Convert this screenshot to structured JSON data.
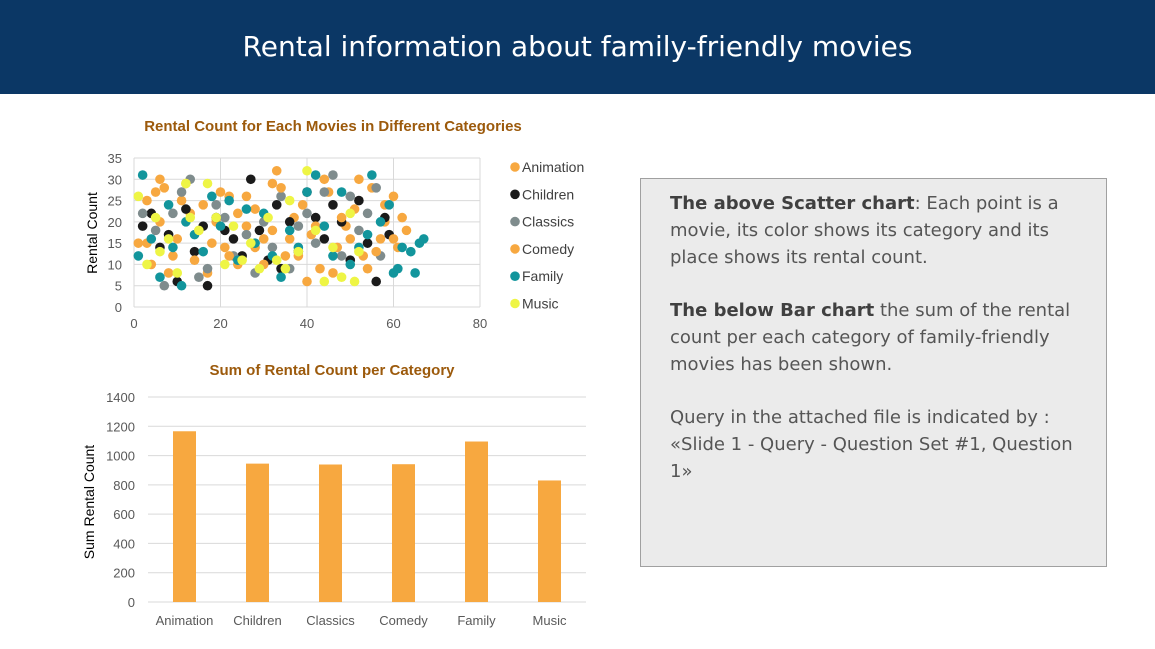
{
  "header": {
    "title": "Rental information about family-friendly movies"
  },
  "colors": {
    "header_bg": "#0b3765",
    "chart_title": "#9c5a0c",
    "bar": "#f7a840",
    "animation": "#f7a840",
    "children": "#1a1a1a",
    "classics": "#7f8c8d",
    "comedy": "#f7a840",
    "family": "#12959c",
    "music": "#eef545"
  },
  "info": {
    "p1_bold": "The above Scatter chart",
    "p1_text": ": Each point is a movie, its color shows its category and its place shows its rental count.",
    "p2_bold": "The below Bar chart",
    "p2_text": " the sum of the rental count per each category of family-friendly movies has been shown.",
    "p3_text": "Query in the attached file is indicated by : «Slide 1 - Query - Question Set #1, Question 1»"
  },
  "chart_data": [
    {
      "type": "scatter",
      "title": "Rental Count for Each Movies in Different Categories",
      "xlabel": "",
      "ylabel": "Rental Count",
      "xlim": [
        0,
        80
      ],
      "ylim": [
        0,
        35
      ],
      "x_ticks": [
        "0",
        "20",
        "40",
        "60",
        "80"
      ],
      "y_ticks": [
        "0",
        "5",
        "10",
        "15",
        "20",
        "25",
        "30",
        "35"
      ],
      "grid": true,
      "legend_position": "right",
      "series": [
        {
          "name": "Animation",
          "color": "#f7a840",
          "points": [
            [
              3,
              15
            ],
            [
              5,
              27
            ],
            [
              6,
              30
            ],
            [
              7,
              28
            ],
            [
              9,
              12
            ],
            [
              11,
              25
            ],
            [
              13,
              22
            ],
            [
              15,
              18
            ],
            [
              17,
              8
            ],
            [
              19,
              20
            ],
            [
              21,
              14
            ],
            [
              22,
              26
            ],
            [
              24,
              10
            ],
            [
              26,
              19
            ],
            [
              28,
              23
            ],
            [
              30,
              16
            ],
            [
              32,
              29
            ],
            [
              33,
              32
            ],
            [
              35,
              12
            ],
            [
              37,
              21
            ],
            [
              39,
              24
            ],
            [
              41,
              17
            ],
            [
              43,
              9
            ],
            [
              45,
              27
            ],
            [
              47,
              14
            ],
            [
              49,
              19
            ],
            [
              51,
              23
            ],
            [
              53,
              12
            ],
            [
              55,
              28
            ],
            [
              57,
              16
            ],
            [
              58,
              20
            ],
            [
              60,
              26
            ],
            [
              61,
              14
            ],
            [
              63,
              18
            ]
          ]
        },
        {
          "name": "Children",
          "color": "#1a1a1a",
          "points": [
            [
              2,
              19
            ],
            [
              4,
              22
            ],
            [
              6,
              14
            ],
            [
              8,
              17
            ],
            [
              10,
              6
            ],
            [
              12,
              23
            ],
            [
              14,
              13
            ],
            [
              16,
              19
            ],
            [
              17,
              5
            ],
            [
              19,
              21
            ],
            [
              21,
              18
            ],
            [
              23,
              16
            ],
            [
              25,
              12
            ],
            [
              27,
              30
            ],
            [
              29,
              18
            ],
            [
              31,
              11
            ],
            [
              33,
              24
            ],
            [
              34,
              9
            ],
            [
              36,
              20
            ],
            [
              38,
              13
            ],
            [
              40,
              27
            ],
            [
              42,
              21
            ],
            [
              44,
              16
            ],
            [
              46,
              24
            ],
            [
              48,
              20
            ],
            [
              50,
              11
            ],
            [
              52,
              25
            ],
            [
              54,
              15
            ],
            [
              56,
              6
            ],
            [
              58,
              21
            ],
            [
              59,
              17
            ]
          ]
        },
        {
          "name": "Classics",
          "color": "#7f8c8d",
          "points": [
            [
              2,
              22
            ],
            [
              5,
              18
            ],
            [
              7,
              5
            ],
            [
              9,
              22
            ],
            [
              11,
              27
            ],
            [
              13,
              30
            ],
            [
              15,
              7
            ],
            [
              17,
              9
            ],
            [
              19,
              24
            ],
            [
              21,
              21
            ],
            [
              23,
              12
            ],
            [
              26,
              17
            ],
            [
              28,
              8
            ],
            [
              30,
              20
            ],
            [
              32,
              14
            ],
            [
              34,
              26
            ],
            [
              36,
              9
            ],
            [
              38,
              19
            ],
            [
              40,
              22
            ],
            [
              42,
              15
            ],
            [
              44,
              27
            ],
            [
              46,
              31
            ],
            [
              48,
              12
            ],
            [
              50,
              26
            ],
            [
              52,
              18
            ],
            [
              54,
              22
            ],
            [
              56,
              28
            ],
            [
              57,
              12
            ]
          ]
        },
        {
          "name": "Comedy",
          "color": "#f7a840",
          "points": [
            [
              1,
              15
            ],
            [
              3,
              25
            ],
            [
              4,
              10
            ],
            [
              6,
              20
            ],
            [
              8,
              8
            ],
            [
              10,
              16
            ],
            [
              12,
              29
            ],
            [
              14,
              11
            ],
            [
              16,
              24
            ],
            [
              18,
              15
            ],
            [
              20,
              27
            ],
            [
              22,
              12
            ],
            [
              24,
              22
            ],
            [
              26,
              26
            ],
            [
              28,
              14
            ],
            [
              30,
              10
            ],
            [
              32,
              18
            ],
            [
              34,
              28
            ],
            [
              36,
              16
            ],
            [
              38,
              12
            ],
            [
              40,
              6
            ],
            [
              42,
              19
            ],
            [
              44,
              30
            ],
            [
              46,
              8
            ],
            [
              48,
              21
            ],
            [
              50,
              16
            ],
            [
              52,
              30
            ],
            [
              54,
              9
            ],
            [
              56,
              13
            ],
            [
              58,
              24
            ],
            [
              60,
              16
            ],
            [
              62,
              21
            ]
          ]
        },
        {
          "name": "Family",
          "color": "#12959c",
          "points": [
            [
              1,
              12
            ],
            [
              2,
              31
            ],
            [
              4,
              16
            ],
            [
              6,
              7
            ],
            [
              8,
              24
            ],
            [
              9,
              14
            ],
            [
              11,
              5
            ],
            [
              12,
              20
            ],
            [
              14,
              17
            ],
            [
              16,
              13
            ],
            [
              18,
              26
            ],
            [
              20,
              19
            ],
            [
              22,
              25
            ],
            [
              24,
              11
            ],
            [
              26,
              23
            ],
            [
              28,
              15
            ],
            [
              30,
              22
            ],
            [
              32,
              12
            ],
            [
              34,
              7
            ],
            [
              36,
              18
            ],
            [
              38,
              14
            ],
            [
              40,
              27
            ],
            [
              42,
              31
            ],
            [
              44,
              19
            ],
            [
              46,
              12
            ],
            [
              48,
              27
            ],
            [
              50,
              10
            ],
            [
              52,
              14
            ],
            [
              54,
              17
            ],
            [
              55,
              31
            ],
            [
              57,
              20
            ],
            [
              59,
              24
            ],
            [
              60,
              8
            ],
            [
              61,
              9
            ],
            [
              62,
              14
            ],
            [
              64,
              13
            ],
            [
              65,
              8
            ],
            [
              66,
              15
            ],
            [
              67,
              16
            ]
          ]
        },
        {
          "name": "Music",
          "color": "#eef545",
          "points": [
            [
              1,
              26
            ],
            [
              3,
              10
            ],
            [
              5,
              21
            ],
            [
              6,
              13
            ],
            [
              8,
              16
            ],
            [
              10,
              8
            ],
            [
              12,
              29
            ],
            [
              13,
              21
            ],
            [
              15,
              18
            ],
            [
              17,
              29
            ],
            [
              19,
              21
            ],
            [
              21,
              10
            ],
            [
              23,
              19
            ],
            [
              25,
              11
            ],
            [
              27,
              15
            ],
            [
              29,
              9
            ],
            [
              31,
              21
            ],
            [
              33,
              11
            ],
            [
              35,
              9
            ],
            [
              36,
              25
            ],
            [
              38,
              13
            ],
            [
              40,
              32
            ],
            [
              42,
              18
            ],
            [
              44,
              6
            ],
            [
              46,
              14
            ],
            [
              48,
              7
            ],
            [
              50,
              22
            ],
            [
              51,
              6
            ],
            [
              52,
              13
            ]
          ]
        }
      ]
    },
    {
      "type": "bar",
      "title": "Sum of Rental Count per Category",
      "xlabel": "",
      "ylabel": "Sum Rental Count",
      "ylim": [
        0,
        1400
      ],
      "y_ticks": [
        "0",
        "200",
        "400",
        "600",
        "800",
        "1000",
        "1200",
        "1400"
      ],
      "grid": true,
      "categories": [
        "Animation",
        "Children",
        "Classics",
        "Comedy",
        "Family",
        "Music"
      ],
      "values": [
        1166,
        945,
        939,
        941,
        1096,
        830
      ]
    }
  ]
}
